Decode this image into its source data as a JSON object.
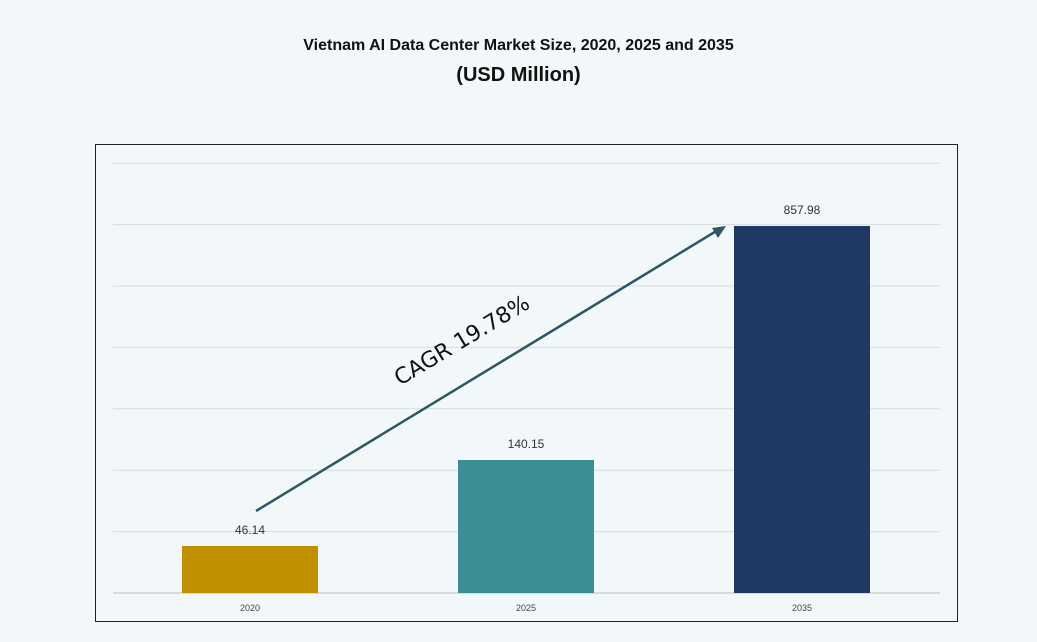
{
  "chart_data": {
    "type": "bar",
    "title": "Vietnam AI Data Center Market Size, 2020, 2025 and 2035",
    "subtitle": "(USD Million)",
    "categories": [
      "2020",
      "2025",
      "2035"
    ],
    "values": [
      46.14,
      140.15,
      857.98
    ],
    "colors": [
      "#bf8f00",
      "#3a8f96",
      "#203864"
    ],
    "grid": true,
    "legend": "none",
    "annotation": "CAGR 19.78%",
    "annotation_color": "#2f5762"
  }
}
